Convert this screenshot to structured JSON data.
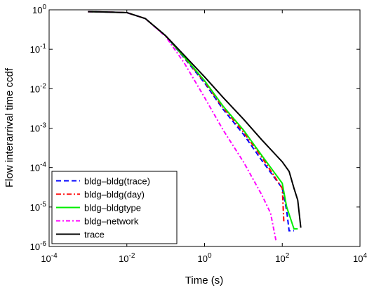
{
  "chart_data": {
    "type": "line",
    "xlabel": "Time (s)",
    "ylabel": "Flow interarrival time ccdf",
    "xscale": "log",
    "yscale": "log",
    "xlim": [
      0.0001,
      10000
    ],
    "ylim": [
      1e-06,
      1
    ],
    "xticks": [
      {
        "value": 0.0001,
        "label": "10^-4"
      },
      {
        "value": 0.01,
        "label": "10^-2"
      },
      {
        "value": 1,
        "label": "10^0"
      },
      {
        "value": 100,
        "label": "10^2"
      },
      {
        "value": 10000,
        "label": "10^4"
      }
    ],
    "yticks": [
      {
        "value": 1e-06,
        "label": "10^-6"
      },
      {
        "value": 1e-05,
        "label": "10^-5"
      },
      {
        "value": 0.0001,
        "label": "10^-4"
      },
      {
        "value": 0.001,
        "label": "10^-3"
      },
      {
        "value": 0.01,
        "label": "10^-2"
      },
      {
        "value": 0.1,
        "label": "10^-1"
      },
      {
        "value": 1,
        "label": "10^0"
      }
    ],
    "legend": "lower left",
    "series": [
      {
        "name": "bldg–bldg(trace)",
        "color": "#0000ff",
        "dash": "7,4",
        "x": [
          0.001,
          0.003,
          0.01,
          0.03,
          0.1,
          0.3,
          1,
          3,
          10,
          30,
          100,
          130,
          150,
          200
        ],
        "values": [
          0.9,
          0.88,
          0.85,
          0.6,
          0.22,
          0.06,
          0.014,
          0.003,
          0.0007,
          0.00015,
          3e-05,
          8e-06,
          2.5e-06,
          2.5e-06
        ]
      },
      {
        "name": "bldg–bldg(day)",
        "color": "#ff0000",
        "dash": "7,3,2,3",
        "x": [
          0.001,
          0.003,
          0.01,
          0.03,
          0.1,
          0.3,
          1,
          3,
          10,
          30,
          100,
          110
        ],
        "values": [
          0.9,
          0.88,
          0.85,
          0.6,
          0.22,
          0.062,
          0.015,
          0.0033,
          0.0008,
          0.00018,
          3e-05,
          4e-06
        ]
      },
      {
        "name": "bldg–bldgtype",
        "color": "#00ee00",
        "dash": "none",
        "x": [
          0.001,
          0.003,
          0.01,
          0.03,
          0.1,
          0.3,
          1,
          3,
          10,
          30,
          100,
          130,
          200,
          250
        ],
        "values": [
          0.9,
          0.88,
          0.85,
          0.6,
          0.22,
          0.064,
          0.016,
          0.0036,
          0.0009,
          0.0002,
          4e-05,
          1e-05,
          2.8e-06,
          2.8e-06
        ]
      },
      {
        "name": "bldg–network",
        "color": "#ff00ff",
        "dash": "6,3,2,3",
        "x": [
          0.001,
          0.003,
          0.01,
          0.03,
          0.1,
          0.3,
          1,
          3,
          10,
          30,
          50,
          70
        ],
        "values": [
          0.9,
          0.88,
          0.85,
          0.6,
          0.21,
          0.045,
          0.006,
          0.0009,
          0.00014,
          2e-05,
          7e-06,
          1.3e-06
        ]
      },
      {
        "name": "trace",
        "color": "#000000",
        "dash": "none",
        "x": [
          0.001,
          0.003,
          0.01,
          0.03,
          0.1,
          0.3,
          1,
          3,
          10,
          30,
          100,
          150,
          200,
          250,
          300
        ],
        "values": [
          0.9,
          0.88,
          0.85,
          0.6,
          0.22,
          0.07,
          0.02,
          0.006,
          0.0017,
          0.0005,
          0.00014,
          8e-05,
          3e-05,
          1.5e-05,
          3e-06
        ]
      }
    ]
  }
}
